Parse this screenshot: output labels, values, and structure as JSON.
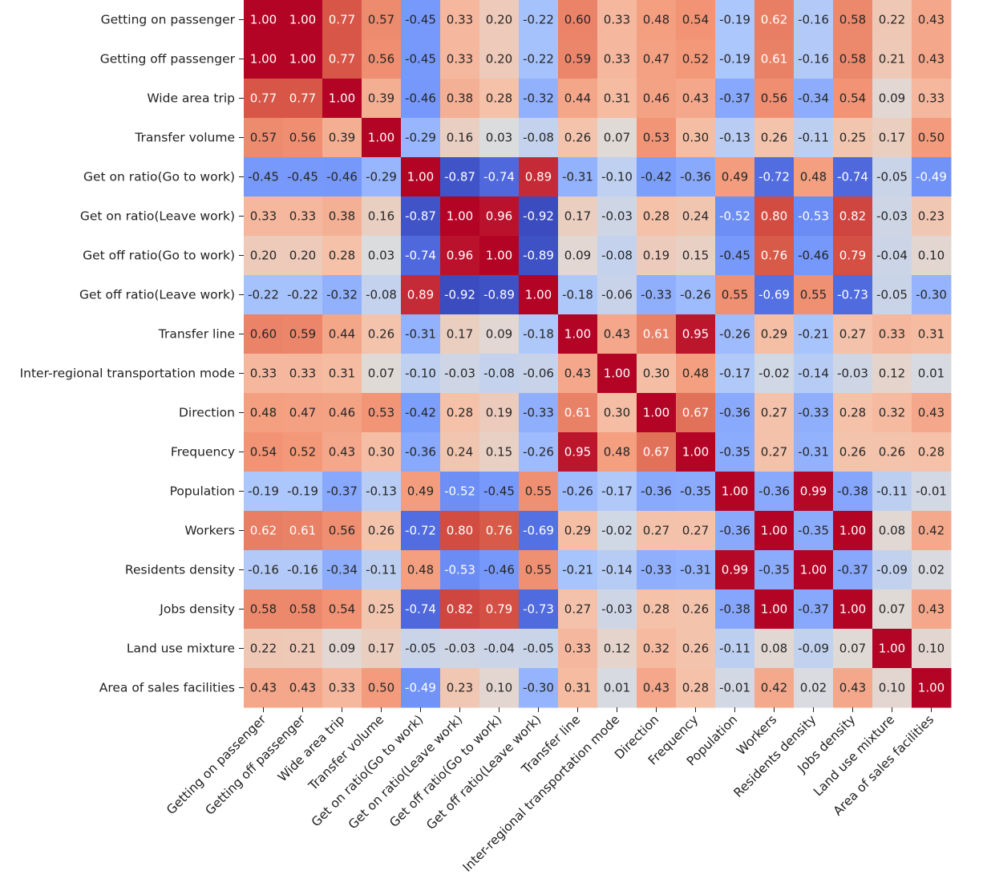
{
  "chart_data": {
    "type": "heatmap",
    "title": "",
    "colormap": "coolwarm",
    "vmin": -0.92,
    "vmax": 1.0,
    "colors": {
      "low": "#3b4cc0",
      "mid": "#dddddd",
      "high": "#b40426"
    },
    "annotation_format": "0.00",
    "colorbar": false,
    "labels": [
      "Getting on passenger",
      "Getting off passenger",
      "Wide area trip",
      "Transfer volume",
      "Get on ratio(Go to work)",
      "Get on ratio(Leave work)",
      "Get off ratio(Go to work)",
      "Get off ratio(Leave work)",
      "Transfer line",
      "Inter-regional transportation mode",
      "Direction",
      "Frequency",
      "Population",
      "Workers",
      "Residents density",
      "Jobs density",
      "Land use mixture",
      "Area of sales facilities"
    ],
    "values": [
      [
        1.0,
        1.0,
        0.77,
        0.57,
        -0.45,
        0.33,
        0.2,
        -0.22,
        0.6,
        0.33,
        0.48,
        0.54,
        -0.19,
        0.62,
        -0.16,
        0.58,
        0.22,
        0.43
      ],
      [
        1.0,
        1.0,
        0.77,
        0.56,
        -0.45,
        0.33,
        0.2,
        -0.22,
        0.59,
        0.33,
        0.47,
        0.52,
        -0.19,
        0.61,
        -0.16,
        0.58,
        0.21,
        0.43
      ],
      [
        0.77,
        0.77,
        1.0,
        0.39,
        -0.46,
        0.38,
        0.28,
        -0.32,
        0.44,
        0.31,
        0.46,
        0.43,
        -0.37,
        0.56,
        -0.34,
        0.54,
        0.09,
        0.33
      ],
      [
        0.57,
        0.56,
        0.39,
        1.0,
        -0.29,
        0.16,
        0.03,
        -0.08,
        0.26,
        0.07,
        0.53,
        0.3,
        -0.13,
        0.26,
        -0.11,
        0.25,
        0.17,
        0.5
      ],
      [
        -0.45,
        -0.45,
        -0.46,
        -0.29,
        1.0,
        -0.87,
        -0.74,
        0.89,
        -0.31,
        -0.1,
        -0.42,
        -0.36,
        0.49,
        -0.72,
        0.48,
        -0.74,
        -0.05,
        -0.49
      ],
      [
        0.33,
        0.33,
        0.38,
        0.16,
        -0.87,
        1.0,
        0.96,
        -0.92,
        0.17,
        -0.03,
        0.28,
        0.24,
        -0.52,
        0.8,
        -0.53,
        0.82,
        -0.03,
        0.23
      ],
      [
        0.2,
        0.2,
        0.28,
        0.03,
        -0.74,
        0.96,
        1.0,
        -0.89,
        0.09,
        -0.08,
        0.19,
        0.15,
        -0.45,
        0.76,
        -0.46,
        0.79,
        -0.04,
        0.1
      ],
      [
        -0.22,
        -0.22,
        -0.32,
        -0.08,
        0.89,
        -0.92,
        -0.89,
        1.0,
        -0.18,
        -0.06,
        -0.33,
        -0.26,
        0.55,
        -0.69,
        0.55,
        -0.73,
        -0.05,
        -0.3
      ],
      [
        0.6,
        0.59,
        0.44,
        0.26,
        -0.31,
        0.17,
        0.09,
        -0.18,
        1.0,
        0.43,
        0.61,
        0.95,
        -0.26,
        0.29,
        -0.21,
        0.27,
        0.33,
        0.31
      ],
      [
        0.33,
        0.33,
        0.31,
        0.07,
        -0.1,
        -0.03,
        -0.08,
        -0.06,
        0.43,
        1.0,
        0.3,
        0.48,
        -0.17,
        -0.02,
        -0.14,
        -0.03,
        0.12,
        0.01
      ],
      [
        0.48,
        0.47,
        0.46,
        0.53,
        -0.42,
        0.28,
        0.19,
        -0.33,
        0.61,
        0.3,
        1.0,
        0.67,
        -0.36,
        0.27,
        -0.33,
        0.28,
        0.32,
        0.43
      ],
      [
        0.54,
        0.52,
        0.43,
        0.3,
        -0.36,
        0.24,
        0.15,
        -0.26,
        0.95,
        0.48,
        0.67,
        1.0,
        -0.35,
        0.27,
        -0.31,
        0.26,
        0.26,
        0.28
      ],
      [
        -0.19,
        -0.19,
        -0.37,
        -0.13,
        0.49,
        -0.52,
        -0.45,
        0.55,
        -0.26,
        -0.17,
        -0.36,
        -0.35,
        1.0,
        -0.36,
        0.99,
        -0.38,
        -0.11,
        -0.01
      ],
      [
        0.62,
        0.61,
        0.56,
        0.26,
        -0.72,
        0.8,
        0.76,
        -0.69,
        0.29,
        -0.02,
        0.27,
        0.27,
        -0.36,
        1.0,
        -0.35,
        1.0,
        0.08,
        0.42
      ],
      [
        -0.16,
        -0.16,
        -0.34,
        -0.11,
        0.48,
        -0.53,
        -0.46,
        0.55,
        -0.21,
        -0.14,
        -0.33,
        -0.31,
        0.99,
        -0.35,
        1.0,
        -0.37,
        -0.09,
        0.02
      ],
      [
        0.58,
        0.58,
        0.54,
        0.25,
        -0.74,
        0.82,
        0.79,
        -0.73,
        0.27,
        -0.03,
        0.28,
        0.26,
        -0.38,
        1.0,
        -0.37,
        1.0,
        0.07,
        0.43
      ],
      [
        0.22,
        0.21,
        0.09,
        0.17,
        -0.05,
        -0.03,
        -0.04,
        -0.05,
        0.33,
        0.12,
        0.32,
        0.26,
        -0.11,
        0.08,
        -0.09,
        0.07,
        1.0,
        0.1
      ],
      [
        0.43,
        0.43,
        0.33,
        0.5,
        -0.49,
        0.23,
        0.1,
        -0.3,
        0.31,
        0.01,
        0.43,
        0.28,
        -0.01,
        0.42,
        0.02,
        0.43,
        0.1,
        1.0
      ]
    ]
  }
}
